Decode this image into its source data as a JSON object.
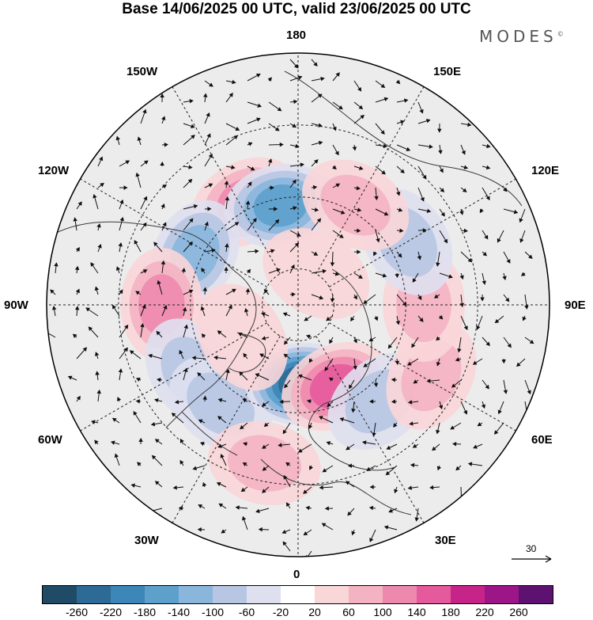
{
  "title": "Base 14/06/2025 00 UTC, valid 23/06/2025 00 UTC",
  "logo": "MODES",
  "logo_mark": "©",
  "longitude_labels": [
    "180",
    "150E",
    "120E",
    "90E",
    "60E",
    "30E",
    "0",
    "30W",
    "60W",
    "90W",
    "120W",
    "150W"
  ],
  "vector_scale_label": "30",
  "colorbar": {
    "colors": [
      "#1f4b66",
      "#2d6b96",
      "#3d86b8",
      "#5da0cc",
      "#8ab6dc",
      "#b7c6e3",
      "#dfe0ef",
      "#ffffff",
      "#f9d6d8",
      "#f4b3c2",
      "#ee89ae",
      "#e55a9c",
      "#c72489",
      "#9c1687",
      "#5d1271"
    ],
    "tick_labels": [
      "-260",
      "-220",
      "-180",
      "-140",
      "-100",
      "-60",
      "-20",
      "20",
      "60",
      "100",
      "140",
      "180",
      "220",
      "260"
    ]
  },
  "chart_data": {
    "type": "heatmap",
    "projection": "north polar stereographic",
    "title": "Base 14/06/2025 00 UTC, valid 23/06/2025 00 UTC",
    "color_levels": [
      -260,
      -220,
      -180,
      -140,
      -100,
      -60,
      -20,
      20,
      60,
      100,
      140,
      180,
      220,
      260
    ],
    "reference_vector": 30,
    "anomalies": [
      {
        "lon": -153,
        "lat": 58,
        "value": 130
      },
      {
        "lon": -170,
        "lat": 62,
        "value": -150
      },
      {
        "lon": -116,
        "lat": 58,
        "value": -130
      },
      {
        "lon": -90,
        "lat": 52,
        "value": 140
      },
      {
        "lon": -58,
        "lat": 55,
        "value": -90
      },
      {
        "lon": -38,
        "lat": 55,
        "value": -100
      },
      {
        "lon": -12,
        "lat": 45,
        "value": 80
      },
      {
        "lon": 3,
        "lat": 68,
        "value": -230
      },
      {
        "lon": 25,
        "lat": 65,
        "value": 160
      },
      {
        "lon": 40,
        "lat": 55,
        "value": -80
      },
      {
        "lon": 62,
        "lat": 48,
        "value": 70
      },
      {
        "lon": 90,
        "lat": 55,
        "value": 70
      },
      {
        "lon": 120,
        "lat": 55,
        "value": -100
      },
      {
        "lon": 150,
        "lat": 58,
        "value": 70
      },
      {
        "lon": -60,
        "lat": 72,
        "value": 60
      },
      {
        "lon": 150,
        "lat": 80,
        "value": 40
      }
    ]
  }
}
